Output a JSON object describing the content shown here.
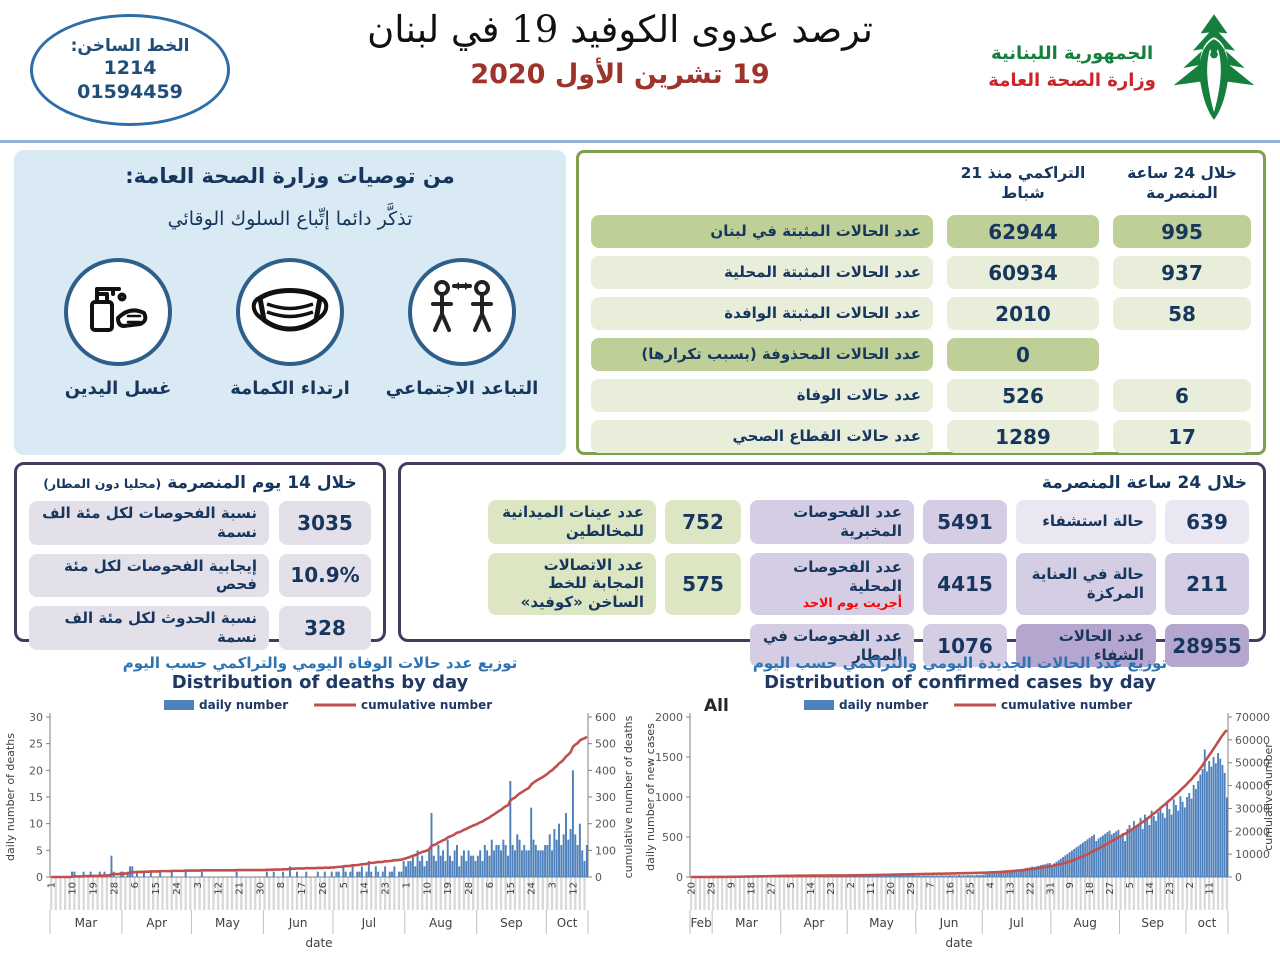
{
  "colors": {
    "bar": "#4f81bd",
    "line": "#c0504d",
    "axis_text": "#595959",
    "axis_line": "#808080",
    "stripe": "#d9d9d9",
    "month_line": "#bfbfbf",
    "navy": "#17365d"
  },
  "header": {
    "hotline": {
      "label": "الخط الساخن:",
      "line1": "1214",
      "line2": "01594459"
    },
    "title": "ترصد عدوى الكوفيد 19 في لبنان",
    "date": "19 تشرين الأول 2020",
    "ministry": {
      "line1": "الجمهورية اللبنانية",
      "line2": "وزارة الصحة العامة"
    }
  },
  "recommendations": {
    "title": "من توصيات وزارة الصحة العامة:",
    "subtitle": "تذكَّر دائما إتِّباع السلوك الوقائي",
    "items": [
      {
        "icon": "social-distance-icon",
        "label": "التباعد الاجتماعي"
      },
      {
        "icon": "mask-icon",
        "label": "ارتداء الكمامة"
      },
      {
        "icon": "hand-wash-icon",
        "label": "غسل اليدين"
      }
    ]
  },
  "summary_table": {
    "col_24h": "خلال 24 ساعة المنصرمة",
    "col_cum": "التراكمي منذ 21 شباط",
    "rows": [
      {
        "label": "عدد الحالات المثبتة في لبنان",
        "cum": "62944",
        "h24": "995",
        "dark": true
      },
      {
        "label": "عدد الحالات المثبتة المحلية",
        "cum": "60934",
        "h24": "937",
        "dark": false
      },
      {
        "label": "عدد الحالات المثبتة الوافدة",
        "cum": "2010",
        "h24": "58",
        "dark": false
      },
      {
        "label": "عدد الحالات المحذوفة (بسبب تكرارها)",
        "cum": "0",
        "h24": "",
        "dark": true
      },
      {
        "label": "عدد حالات الوفاة",
        "cum": "526",
        "h24": "6",
        "dark": false
      },
      {
        "label": "عدد حالات القطاع الصحي",
        "cum": "1289",
        "h24": "17",
        "dark": false
      }
    ]
  },
  "two_weeks": {
    "title": "خلال 14 يوم المنصرمة",
    "title_note": "(محليا دون المطار)",
    "rows": [
      {
        "label": "نسبة الفحوصات لكل مئة الف نسمة",
        "value": "3035"
      },
      {
        "label": "إيجابية الفحوصات لكل مئة فحص",
        "value": "10.9%"
      },
      {
        "label": "نسبة الحدوث لكل مئة الف نسمة",
        "value": "328"
      }
    ]
  },
  "last24": {
    "title": "خلال 24 ساعة المنصرمة",
    "col1": [
      {
        "label": "حالة استشفاء",
        "value": "639",
        "tone": "p-light"
      },
      {
        "label": "حالة في العناية المركزة",
        "value": "211",
        "tone": "p-mid"
      },
      {
        "label": "عدد الحالات الشفاء",
        "value": "28955",
        "tone": "p-dark"
      }
    ],
    "col2": [
      {
        "label": "عدد الفحوصات المخبرية",
        "value": "5491",
        "note": ""
      },
      {
        "label": "عدد الفحوصات المحلية",
        "value": "4415",
        "note": "أجريت يوم الاحد"
      },
      {
        "label": "عدد الفحوصات في المطار",
        "value": "1076",
        "note": ""
      }
    ],
    "col3": [
      {
        "label": "عدد عينات الميدانية للمخالطين",
        "value": "752"
      },
      {
        "label": "عدد الاتصالات المجابة للخط الساخن «كوفيد»",
        "value": "575"
      }
    ]
  },
  "chart_data": [
    {
      "type": "bar+line",
      "title_ar": "توزيع عدد حالات  الوفاة اليومي والتراكمي حسب اليوم",
      "title_en": "Distribution of deaths by day",
      "legend": [
        "daily number",
        "cumulative number"
      ],
      "annotation": "",
      "ylabel_left": "daily number of deaths",
      "ylabel_right": "cumulative number of deaths",
      "xlabel": "date",
      "ylim_left": [
        0,
        30
      ],
      "ytick_left": 5,
      "ylim_right": [
        0,
        600
      ],
      "ytick_right": 100,
      "months": [
        [
          "Mar",
          31
        ],
        [
          "Apr",
          30
        ],
        [
          "May",
          31
        ],
        [
          "Jun",
          30
        ],
        [
          "Jul",
          31
        ],
        [
          "Aug",
          31
        ],
        [
          "Sep",
          30
        ],
        [
          "Oct",
          18
        ]
      ],
      "tick_labels": [
        "1",
        "10",
        "19",
        "28",
        "6",
        "15",
        "24",
        "3",
        "12",
        "21",
        "30",
        "8",
        "17",
        "26",
        "5",
        "14",
        "23",
        "1",
        "10",
        "19",
        "28",
        "6",
        "15",
        "24",
        "3",
        "12"
      ],
      "tick_every": 9,
      "cumulative_total": 526,
      "daily": [
        0,
        0,
        0,
        0,
        0,
        0,
        0,
        0,
        0,
        1,
        1,
        0,
        0,
        0,
        1,
        0,
        0,
        1,
        0,
        0,
        0,
        1,
        0,
        1,
        0,
        0,
        4,
        1,
        0,
        0,
        1,
        1,
        0,
        1,
        2,
        2,
        0,
        1,
        0,
        0,
        1,
        0,
        0,
        1,
        0,
        0,
        0,
        1,
        0,
        0,
        0,
        0,
        1,
        0,
        0,
        0,
        0,
        0,
        1,
        0,
        0,
        0,
        0,
        0,
        0,
        1,
        0,
        0,
        0,
        0,
        0,
        0,
        0,
        0,
        0,
        0,
        0,
        0,
        0,
        0,
        1,
        0,
        0,
        0,
        0,
        0,
        0,
        0,
        0,
        0,
        0,
        0,
        0,
        1,
        0,
        0,
        1,
        0,
        0,
        0,
        1,
        0,
        0,
        2,
        0,
        0,
        1,
        0,
        0,
        0,
        1,
        0,
        0,
        0,
        0,
        1,
        0,
        0,
        1,
        0,
        0,
        1,
        0,
        1,
        1,
        0,
        2,
        1,
        0,
        1,
        2,
        0,
        1,
        1,
        2,
        0,
        1,
        3,
        1,
        0,
        2,
        1,
        0,
        1,
        2,
        0,
        1,
        1,
        2,
        0,
        1,
        1,
        3,
        2,
        3,
        3,
        4,
        2,
        5,
        3,
        4,
        2,
        3,
        5,
        12,
        4,
        3,
        6,
        4,
        5,
        3,
        7,
        4,
        3,
        5,
        6,
        2,
        4,
        5,
        3,
        5,
        4,
        4,
        3,
        4,
        5,
        3,
        6,
        5,
        4,
        7,
        5,
        6,
        6,
        5,
        7,
        6,
        4,
        18,
        6,
        5,
        8,
        7,
        5,
        6,
        5,
        5,
        13,
        7,
        6,
        5,
        5,
        5,
        6,
        6,
        8,
        5,
        9,
        7,
        10,
        6,
        8,
        12,
        7,
        9,
        20,
        8,
        6,
        10,
        5,
        3,
        6
      ]
    },
    {
      "type": "bar+line",
      "title_ar": "توزيع عدد الحالات الجديدة اليومي والتراكمي حسب اليوم",
      "title_en": "Distribution of confirmed cases by day",
      "legend": [
        "daily number",
        "cumulative number"
      ],
      "annotation": "All",
      "ylabel_left": "daily number of new cases",
      "ylabel_right": "cumulative number",
      "xlabel": "date",
      "ylim_left": [
        0,
        2000
      ],
      "ytick_left": 500,
      "ylim_right": [
        0,
        70000
      ],
      "ytick_right": 10000,
      "months": [
        [
          "Feb",
          10
        ],
        [
          "Mar",
          31
        ],
        [
          "Apr",
          30
        ],
        [
          "May",
          31
        ],
        [
          "Jun",
          30
        ],
        [
          "Jul",
          31
        ],
        [
          "Aug",
          31
        ],
        [
          "Sep",
          30
        ],
        [
          "oct",
          19
        ]
      ],
      "tick_labels": [
        "20",
        "29",
        "9",
        "18",
        "27",
        "5",
        "14",
        "23",
        "2",
        "11",
        "20",
        "29",
        "7",
        "16",
        "25",
        "4",
        "13",
        "22",
        "31",
        "9",
        "18",
        "27",
        "5",
        "14",
        "23",
        "2",
        "11"
      ],
      "tick_every": 9,
      "cumulative_total": 62944,
      "daily": [
        1,
        0,
        1,
        1,
        0,
        1,
        1,
        0,
        1,
        1,
        2,
        3,
        4,
        6,
        8,
        10,
        12,
        10,
        14,
        12,
        15,
        12,
        16,
        14,
        18,
        13,
        20,
        15,
        17,
        18,
        15,
        17,
        16,
        18,
        20,
        19,
        17,
        21,
        23,
        22,
        24,
        22,
        14,
        12,
        10,
        15,
        8,
        10,
        6,
        12,
        9,
        7,
        10,
        5,
        8,
        6,
        9,
        4,
        7,
        5,
        8,
        3,
        6,
        9,
        4,
        7,
        5,
        8,
        6,
        4,
        7,
        9,
        12,
        8,
        15,
        11,
        14,
        10,
        18,
        13,
        16,
        12,
        20,
        15,
        18,
        14,
        22,
        16,
        19,
        15,
        24,
        18,
        21,
        17,
        25,
        19,
        23,
        18,
        26,
        20,
        24,
        22,
        15,
        18,
        14,
        20,
        16,
        19,
        15,
        22,
        17,
        20,
        16,
        23,
        18,
        21,
        17,
        24,
        19,
        22,
        18,
        25,
        20,
        23,
        19,
        26,
        21,
        24,
        20,
        27,
        22,
        25,
        30,
        35,
        40,
        38,
        45,
        50,
        48,
        55,
        60,
        58,
        65,
        70,
        75,
        72,
        80,
        85,
        90,
        95,
        100,
        110,
        115,
        120,
        130,
        125,
        135,
        140,
        150,
        155,
        160,
        170,
        175,
        150,
        170,
        190,
        210,
        230,
        250,
        270,
        290,
        310,
        330,
        350,
        370,
        390,
        410,
        430,
        450,
        470,
        490,
        510,
        530,
        450,
        480,
        500,
        520,
        540,
        560,
        580,
        530,
        550,
        570,
        590,
        500,
        550,
        450,
        600,
        650,
        580,
        700,
        620,
        660,
        740,
        600,
        780,
        720,
        650,
        830,
        760,
        700,
        810,
        880,
        800,
        740,
        920,
        850,
        780,
        970,
        900,
        830,
        1010,
        940,
        870,
        1000,
        1050,
        980,
        1150,
        1100,
        1200,
        1280,
        1350,
        1595,
        1320,
        1450,
        1380,
        1500,
        1420,
        1550,
        1480,
        1400,
        1300,
        995
      ]
    }
  ]
}
